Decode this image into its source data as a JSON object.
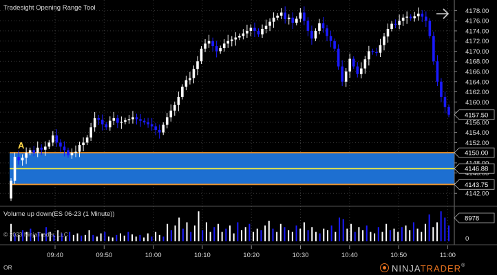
{
  "header": {
    "title": "Tradesight Opening Range Tool"
  },
  "volume_panel": {
    "title": "Volume up down(ES 06-23 (1 Minute))",
    "last_value_label": "8978",
    "zero_label": "0"
  },
  "copyright": "© 2023 NinjaTrader, LLC",
  "marker": "A",
  "status_label": "OR",
  "logo": {
    "left": "NINJA",
    "right": "TRADER",
    "reg": "®"
  },
  "opening_range": {
    "high_label": "4150.00",
    "mid_label": "4146.88",
    "low_label": "4143.75",
    "high": 4150.0,
    "mid": 4146.88,
    "low": 4143.75
  },
  "current_price": {
    "label": "4157.50",
    "value": 4157.5
  },
  "colors": {
    "background": "#000000",
    "up_candle": "#ffffff",
    "down_candle": "#1a1aff",
    "range_fill": "#1d6fd1",
    "range_border": "#e8912b",
    "mid_line": "#e6e64a",
    "grid": "#3a3a3a",
    "logo_accent": "#e8731f"
  },
  "chart_data": {
    "type": "candlestick",
    "price_axis": {
      "min": 4140,
      "max": 4179,
      "tick_step": 2,
      "ticks": [
        "4178.00",
        "4176.00",
        "4174.00",
        "4172.00",
        "4170.00",
        "4168.00",
        "4166.00",
        "4164.00",
        "4162.00",
        "4160.00",
        "4158.00",
        "4156.00",
        "4154.00",
        "4152.00",
        "4150.00",
        "4148.00",
        "4146.00",
        "4144.00",
        "4142.00"
      ]
    },
    "time_axis": {
      "labels": [
        "09:40",
        "09:50",
        "10:00",
        "10:10",
        "10:20",
        "10:30",
        "10:40",
        "10:50",
        "11:00"
      ]
    },
    "close_prices": [
      4144.5,
      4149.2,
      4148.5,
      4149.0,
      4150.0,
      4150.5,
      4150.0,
      4151.0,
      4150.6,
      4151.2,
      4152.0,
      4153.4,
      4152.0,
      4151.2,
      4150.5,
      4149.5,
      4150.0,
      4150.2,
      4151.5,
      4152.0,
      4153.0,
      4155.0,
      4156.8,
      4156.5,
      4155.6,
      4155.0,
      4156.3,
      4156.8,
      4155.9,
      4156.1,
      4156.4,
      4156.6,
      4157.0,
      4156.6,
      4156.3,
      4156.0,
      4155.6,
      4155.2,
      4154.5,
      4154.0,
      4155.5,
      4157.0,
      4158.3,
      4159.4,
      4161.0,
      4163.0,
      4164.3,
      4164.7,
      4166.5,
      4168.0,
      4170.5,
      4171.5,
      4172.0,
      4171.0,
      4170.0,
      4170.6,
      4171.5,
      4172.0,
      4172.3,
      4172.7,
      4173.0,
      4173.5,
      4174.0,
      4174.6,
      4174.0,
      4173.3,
      4174.4,
      4175.0,
      4175.8,
      4176.6,
      4177.0,
      4177.6,
      4176.3,
      4176.6,
      4175.6,
      4176.4,
      4177.6,
      4176.0,
      4174.0,
      4172.5,
      4174.0,
      4175.5,
      4174.5,
      4173.0,
      4172.0,
      4170.5,
      4167.0,
      4164.0,
      4166.0,
      4168.5,
      4167.0,
      4165.5,
      4166.6,
      4168.4,
      4170.0,
      4169.8,
      4169.7,
      4171.2,
      4172.9,
      4174.4,
      4175.4,
      4175.2,
      4176.0,
      4176.6,
      4176.8,
      4176.5,
      4176.9,
      4177.4,
      4176.8,
      4176.0,
      4173.0,
      4168.0,
      4164.0,
      4161.0,
      4159.0,
      4157.5
    ],
    "volume_bars": [
      {
        "v": 0.55,
        "d": 0
      },
      {
        "v": 0.25,
        "d": 1
      },
      {
        "v": 0.2,
        "d": 0
      },
      {
        "v": 0.35,
        "d": 1
      },
      {
        "v": 0.3,
        "d": 0
      },
      {
        "v": 0.4,
        "d": 1
      },
      {
        "v": 0.2,
        "d": 0
      },
      {
        "v": 0.3,
        "d": 1
      },
      {
        "v": 0.25,
        "d": 0
      },
      {
        "v": 0.45,
        "d": 1
      },
      {
        "v": 0.3,
        "d": 0
      },
      {
        "v": 0.2,
        "d": 1
      },
      {
        "v": 0.35,
        "d": 0
      },
      {
        "v": 0.25,
        "d": 1
      },
      {
        "v": 0.15,
        "d": 0
      },
      {
        "v": 0.3,
        "d": 1
      },
      {
        "v": 0.2,
        "d": 0
      },
      {
        "v": 0.25,
        "d": 0
      },
      {
        "v": 0.18,
        "d": 1
      },
      {
        "v": 0.2,
        "d": 0
      },
      {
        "v": 0.35,
        "d": 0
      },
      {
        "v": 0.2,
        "d": 1
      },
      {
        "v": 0.15,
        "d": 0
      },
      {
        "v": 0.25,
        "d": 0
      },
      {
        "v": 0.3,
        "d": 1
      },
      {
        "v": 0.15,
        "d": 0
      },
      {
        "v": 0.12,
        "d": 0
      },
      {
        "v": 0.2,
        "d": 1
      },
      {
        "v": 0.25,
        "d": 0
      },
      {
        "v": 0.18,
        "d": 0
      },
      {
        "v": 0.3,
        "d": 1
      },
      {
        "v": 0.22,
        "d": 0
      },
      {
        "v": 0.15,
        "d": 0
      },
      {
        "v": 0.2,
        "d": 1
      },
      {
        "v": 0.12,
        "d": 0
      },
      {
        "v": 0.25,
        "d": 0
      },
      {
        "v": 0.15,
        "d": 1
      },
      {
        "v": 0.3,
        "d": 0
      },
      {
        "v": 0.2,
        "d": 0
      },
      {
        "v": 0.15,
        "d": 1
      },
      {
        "v": 0.55,
        "d": 0
      },
      {
        "v": 0.35,
        "d": 1
      },
      {
        "v": 0.5,
        "d": 0
      },
      {
        "v": 0.75,
        "d": 0
      },
      {
        "v": 0.4,
        "d": 1
      },
      {
        "v": 0.6,
        "d": 0
      },
      {
        "v": 0.3,
        "d": 1
      },
      {
        "v": 0.5,
        "d": 0
      },
      {
        "v": 0.95,
        "d": 0
      },
      {
        "v": 0.35,
        "d": 1
      },
      {
        "v": 0.6,
        "d": 0
      },
      {
        "v": 0.3,
        "d": 0
      },
      {
        "v": 0.45,
        "d": 1
      },
      {
        "v": 0.55,
        "d": 0
      },
      {
        "v": 0.3,
        "d": 0
      },
      {
        "v": 0.4,
        "d": 1
      },
      {
        "v": 0.5,
        "d": 0
      },
      {
        "v": 0.25,
        "d": 0
      },
      {
        "v": 0.6,
        "d": 1
      },
      {
        "v": 0.35,
        "d": 0
      },
      {
        "v": 0.45,
        "d": 0
      },
      {
        "v": 0.55,
        "d": 1
      },
      {
        "v": 0.3,
        "d": 0
      },
      {
        "v": 0.4,
        "d": 0
      },
      {
        "v": 0.35,
        "d": 1
      },
      {
        "v": 0.5,
        "d": 0
      },
      {
        "v": 0.65,
        "d": 0
      },
      {
        "v": 0.4,
        "d": 1
      },
      {
        "v": 0.3,
        "d": 0
      },
      {
        "v": 0.55,
        "d": 0
      },
      {
        "v": 0.45,
        "d": 1
      },
      {
        "v": 0.35,
        "d": 0
      },
      {
        "v": 0.3,
        "d": 0
      },
      {
        "v": 0.5,
        "d": 1
      },
      {
        "v": 0.4,
        "d": 0
      },
      {
        "v": 0.6,
        "d": 0
      },
      {
        "v": 0.35,
        "d": 1
      },
      {
        "v": 0.45,
        "d": 0
      },
      {
        "v": 0.3,
        "d": 0
      },
      {
        "v": 0.25,
        "d": 1
      },
      {
        "v": 0.4,
        "d": 0
      },
      {
        "v": 0.35,
        "d": 0
      },
      {
        "v": 0.5,
        "d": 1
      },
      {
        "v": 0.3,
        "d": 0
      },
      {
        "v": 0.75,
        "d": 1
      },
      {
        "v": 0.7,
        "d": 1
      },
      {
        "v": 0.4,
        "d": 0
      },
      {
        "v": 0.55,
        "d": 0
      },
      {
        "v": 0.3,
        "d": 1
      },
      {
        "v": 0.45,
        "d": 0
      },
      {
        "v": 0.35,
        "d": 0
      },
      {
        "v": 0.5,
        "d": 1
      },
      {
        "v": 0.3,
        "d": 0
      },
      {
        "v": 0.25,
        "d": 0
      },
      {
        "v": 0.45,
        "d": 1
      },
      {
        "v": 0.3,
        "d": 0
      },
      {
        "v": 0.55,
        "d": 0
      },
      {
        "v": 0.35,
        "d": 1
      },
      {
        "v": 0.4,
        "d": 0
      },
      {
        "v": 0.3,
        "d": 0
      },
      {
        "v": 0.45,
        "d": 1
      },
      {
        "v": 0.5,
        "d": 0
      },
      {
        "v": 0.35,
        "d": 0
      },
      {
        "v": 0.6,
        "d": 1
      },
      {
        "v": 0.4,
        "d": 0
      },
      {
        "v": 0.3,
        "d": 0
      },
      {
        "v": 0.55,
        "d": 0
      },
      {
        "v": 0.85,
        "d": 1
      },
      {
        "v": 0.45,
        "d": 0
      },
      {
        "v": 0.6,
        "d": 0
      },
      {
        "v": 0.95,
        "d": 1
      },
      {
        "v": 0.75,
        "d": 1
      },
      {
        "v": 0.5,
        "d": 1
      }
    ]
  }
}
